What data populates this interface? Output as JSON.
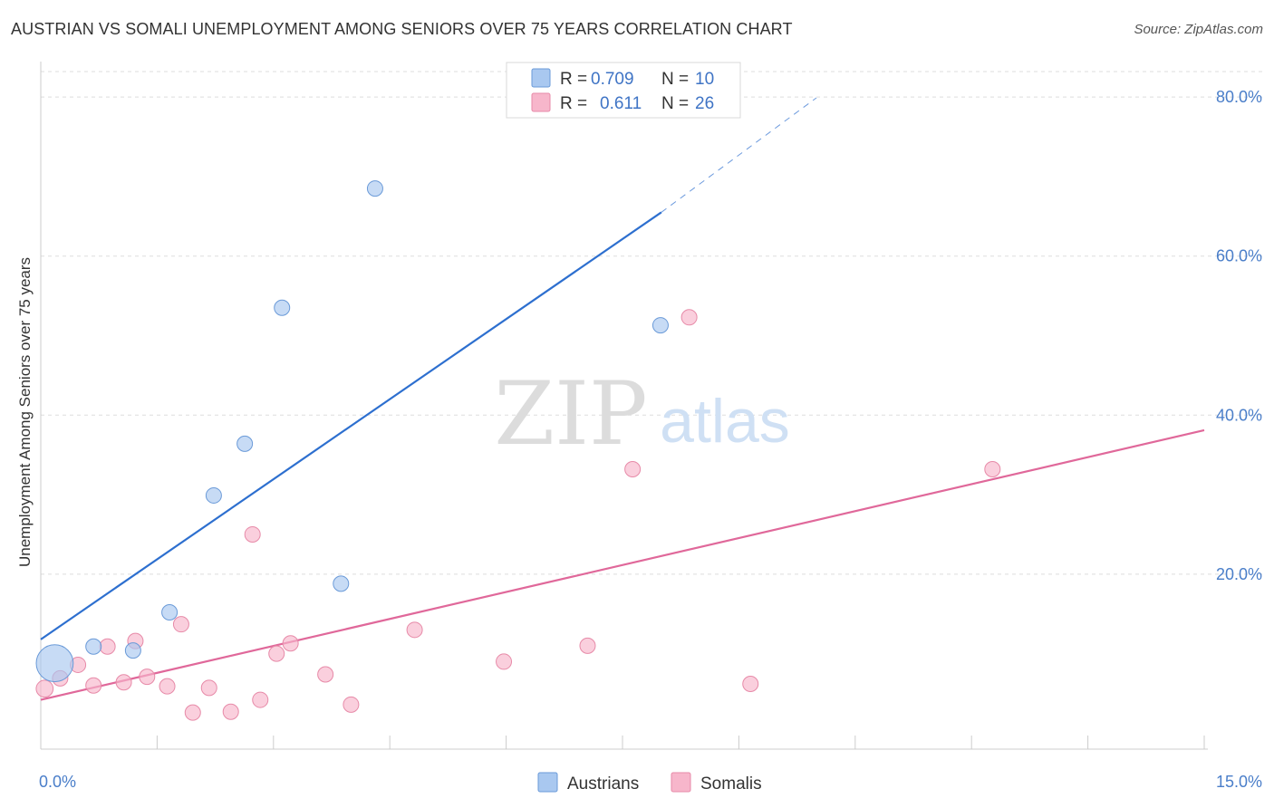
{
  "title": "AUSTRIAN VS SOMALI UNEMPLOYMENT AMONG SENIORS OVER 75 YEARS CORRELATION CHART",
  "source": "Source: ZipAtlas.com",
  "watermark": {
    "zip": "ZIP",
    "atlas": "atlas"
  },
  "legend_top": [
    {
      "r_label": "R =",
      "r_value": "0.709",
      "n_label": "N =",
      "n_value": "10",
      "color": "#a9c8f0",
      "stroke": "#6a9ad8"
    },
    {
      "r_label": "R =",
      "r_value": "0.611",
      "n_label": "N =",
      "n_value": "26",
      "color": "#f7b6cb",
      "stroke": "#e78aa8"
    }
  ],
  "legend_bottom": [
    {
      "label": "Austrians",
      "color": "#a9c8f0",
      "stroke": "#6a9ad8"
    },
    {
      "label": "Somalis",
      "color": "#f7b6cb",
      "stroke": "#e78aa8"
    }
  ],
  "chart_data": {
    "type": "scatter",
    "xlabel": "",
    "ylabel": "Unemployment Among Seniors over 75 years",
    "xlim": [
      0,
      15
    ],
    "ylim": [
      -2,
      84
    ],
    "x_tick_labels": [
      {
        "value": 0,
        "label": "0.0%"
      },
      {
        "value": 15,
        "label": "15.0%"
      }
    ],
    "y_tick_labels": [
      {
        "value": 20,
        "label": "20.0%"
      },
      {
        "value": 40,
        "label": "40.0%"
      },
      {
        "value": 60,
        "label": "60.0%"
      },
      {
        "value": 80,
        "label": "80.0%"
      }
    ],
    "grid": true,
    "series": [
      {
        "name": "Austrians",
        "color": "#a9c8f0",
        "stroke": "#6a9ad8",
        "line_color": "#2d6fcf",
        "points": [
          {
            "x": 0.18,
            "y": 8.8,
            "size": 2.4
          },
          {
            "x": 0.68,
            "y": 10.9,
            "size": 1
          },
          {
            "x": 1.19,
            "y": 10.4,
            "size": 1
          },
          {
            "x": 1.66,
            "y": 15.2,
            "size": 1
          },
          {
            "x": 2.23,
            "y": 29.9,
            "size": 1
          },
          {
            "x": 2.63,
            "y": 36.4,
            "size": 1
          },
          {
            "x": 3.11,
            "y": 53.5,
            "size": 1
          },
          {
            "x": 3.87,
            "y": 18.8,
            "size": 1
          },
          {
            "x": 4.31,
            "y": 68.5,
            "size": 1
          },
          {
            "x": 7.99,
            "y": 51.3,
            "size": 1
          }
        ],
        "trend": {
          "x0": 0,
          "y0": 11.8,
          "x1": 8.0,
          "y1": 65.5,
          "dash_to_x": 10.0,
          "dash_to_y": 79.9
        }
      },
      {
        "name": "Somalis",
        "color": "#f7b6cb",
        "stroke": "#e78aa8",
        "line_color": "#e0689a",
        "points": [
          {
            "x": 0.05,
            "y": 5.6,
            "size": 1.1
          },
          {
            "x": 0.25,
            "y": 6.9,
            "size": 1
          },
          {
            "x": 0.48,
            "y": 8.6,
            "size": 1
          },
          {
            "x": 0.68,
            "y": 6.0,
            "size": 1
          },
          {
            "x": 0.86,
            "y": 10.9,
            "size": 1
          },
          {
            "x": 1.07,
            "y": 6.4,
            "size": 1
          },
          {
            "x": 1.22,
            "y": 11.6,
            "size": 1
          },
          {
            "x": 1.37,
            "y": 7.1,
            "size": 1
          },
          {
            "x": 1.63,
            "y": 5.9,
            "size": 1
          },
          {
            "x": 1.81,
            "y": 13.7,
            "size": 1
          },
          {
            "x": 1.96,
            "y": 2.6,
            "size": 1
          },
          {
            "x": 2.17,
            "y": 5.7,
            "size": 1
          },
          {
            "x": 2.45,
            "y": 2.7,
            "size": 1
          },
          {
            "x": 2.73,
            "y": 25.0,
            "size": 1
          },
          {
            "x": 2.83,
            "y": 4.2,
            "size": 1
          },
          {
            "x": 3.04,
            "y": 10.0,
            "size": 1
          },
          {
            "x": 3.22,
            "y": 11.3,
            "size": 1
          },
          {
            "x": 3.67,
            "y": 7.4,
            "size": 1
          },
          {
            "x": 4.0,
            "y": 3.6,
            "size": 1
          },
          {
            "x": 4.82,
            "y": 13.0,
            "size": 1
          },
          {
            "x": 5.97,
            "y": 9.0,
            "size": 1
          },
          {
            "x": 7.05,
            "y": 11.0,
            "size": 1
          },
          {
            "x": 7.63,
            "y": 33.2,
            "size": 1
          },
          {
            "x": 8.36,
            "y": 52.3,
            "size": 1
          },
          {
            "x": 9.15,
            "y": 6.2,
            "size": 1
          },
          {
            "x": 12.27,
            "y": 33.2,
            "size": 1
          }
        ],
        "trend": {
          "x0": 0,
          "y0": 4.2,
          "x1": 15.0,
          "y1": 38.1
        }
      }
    ]
  }
}
